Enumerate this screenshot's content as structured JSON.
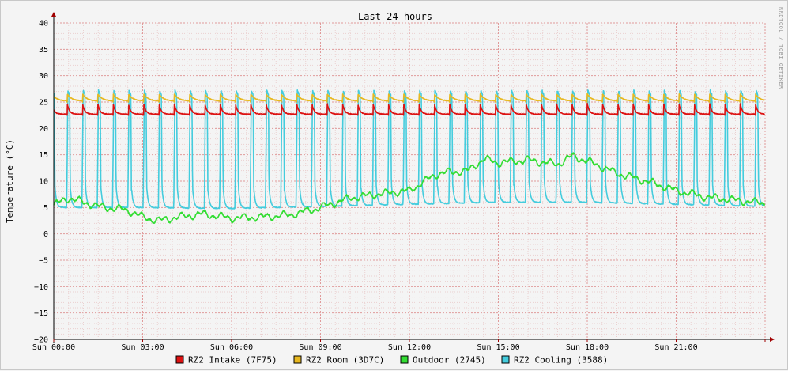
{
  "chart_data": {
    "type": "line",
    "title": "Last 24 hours",
    "ylabel": "Temperature (°C)",
    "watermark": "RRDTOOL / TOBI OETIKER",
    "ylim": [
      -20,
      40
    ],
    "yticks": [
      -20,
      -15,
      -10,
      -5,
      0,
      5,
      10,
      15,
      20,
      25,
      30,
      35,
      40
    ],
    "xlim_hours": [
      0,
      24
    ],
    "xticks": [
      {
        "hour": 0,
        "label": "Sun 00:00"
      },
      {
        "hour": 3,
        "label": "Sun 03:00"
      },
      {
        "hour": 6,
        "label": "Sun 06:00"
      },
      {
        "hour": 9,
        "label": "Sun 09:00"
      },
      {
        "hour": 12,
        "label": "Sun 12:00"
      },
      {
        "hour": 15,
        "label": "Sun 15:00"
      },
      {
        "hour": 18,
        "label": "Sun 18:00"
      },
      {
        "hour": 21,
        "label": "Sun 21:00"
      }
    ],
    "grid": true,
    "legend_position": "bottom",
    "series": [
      {
        "name": "RZ2 Intake (7F75)",
        "color": "#dd1111",
        "cycle_hours": 0.516,
        "base": 22.7,
        "peak": 25.0,
        "decay_hours": 0.07,
        "note_pattern": "sawtooth"
      },
      {
        "name": "RZ2 Room (3D7C)",
        "color": "#e8b820",
        "cycle_hours": 0.516,
        "base": 25.2,
        "peak": 26.6,
        "decay_hours": 0.15,
        "note_pattern": "sawtooth"
      },
      {
        "name": "Outdoor (2745)",
        "color": "#33dd33",
        "x": [
          0,
          0.5,
          1.5,
          2.5,
          3.0,
          3.5,
          4.0,
          5.0,
          6.0,
          7.0,
          8.0,
          9.0,
          10.0,
          11.0,
          12.0,
          12.5,
          13.0,
          14.0,
          14.5,
          15.0,
          16.0,
          17.0,
          17.5,
          18.0,
          19.0,
          20.0,
          21.0,
          22.0,
          23.0,
          24.0
        ],
        "y": [
          5.5,
          6.8,
          5.2,
          4.5,
          3.2,
          2.5,
          3.0,
          3.8,
          3.0,
          3.2,
          3.6,
          5.0,
          6.8,
          7.6,
          8.2,
          10.0,
          11.5,
          12.0,
          14.2,
          13.5,
          14.0,
          13.2,
          14.8,
          13.8,
          11.5,
          10.0,
          8.2,
          7.0,
          6.4,
          5.8
        ]
      },
      {
        "name": "RZ2 Cooling (3588)",
        "color": "#44ccdd",
        "cycle_hours": 0.516,
        "peak": 27.2,
        "x": [
          0,
          3,
          6,
          9,
          12,
          15,
          18,
          21,
          24
        ],
        "base": [
          5.0,
          5.0,
          4.8,
          5.2,
          5.6,
          6.0,
          6.0,
          5.6,
          5.2
        ]
      }
    ]
  }
}
